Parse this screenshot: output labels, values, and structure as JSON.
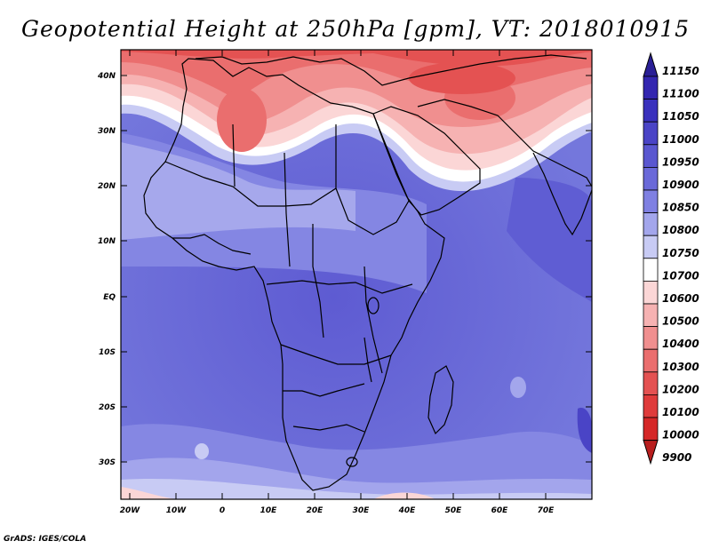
{
  "title": "Geopotential Height at 250hPa [gpm], VT: 2018010915",
  "footer": "GrADS: IGES/COLA",
  "map": {
    "lon_ticks": [
      "20W",
      "10W",
      "0",
      "10E",
      "20E",
      "30E",
      "40E",
      "50E",
      "60E",
      "70E"
    ],
    "lat_ticks": [
      "40N",
      "30N",
      "20N",
      "10N",
      "EQ",
      "10S",
      "20S",
      "30S"
    ]
  },
  "colorbar": {
    "labels": [
      "11150",
      "11100",
      "11050",
      "11000",
      "10950",
      "10900",
      "10850",
      "10800",
      "10750",
      "10700",
      "10600",
      "10500",
      "10400",
      "10300",
      "10200",
      "10100",
      "10000",
      "9900"
    ],
    "colors": [
      "#2a1f96",
      "#3326b0",
      "#3a31bd",
      "#4a44c6",
      "#5a57d0",
      "#6a69d9",
      "#7f80e2",
      "#a3a6ec",
      "#c8cbf4",
      "#ffffff",
      "#fbd6d6",
      "#f6b2b2",
      "#f08f8f",
      "#ea6e6e",
      "#e45252",
      "#df3b3b",
      "#d52727",
      "#b81e1e"
    ]
  }
}
